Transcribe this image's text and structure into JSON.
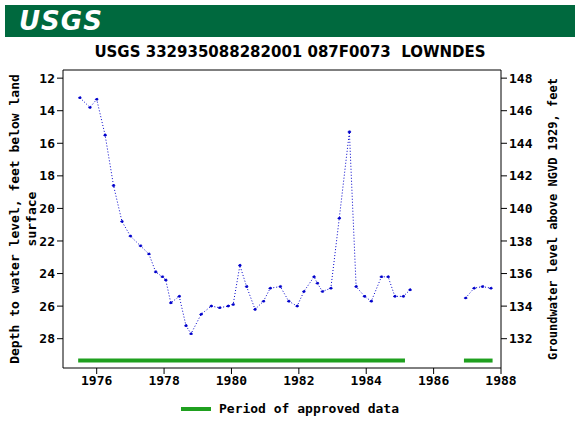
{
  "header": {
    "logo": "USGS"
  },
  "chart_data": {
    "type": "line",
    "title": "USGS 332935088282001 087F0073  LOWNDES",
    "y_label": "Depth to water level, feet below land surface",
    "y2_label": "Groundwater level above NGVD 1929, feet",
    "x": [
      1975.5,
      1975.8,
      1976.0,
      1976.25,
      1976.5,
      1976.75,
      1977.0,
      1977.3,
      1977.55,
      1977.75,
      1977.95,
      1978.05,
      1978.2,
      1978.45,
      1978.65,
      1978.8,
      1979.1,
      1979.4,
      1979.65,
      1979.9,
      1980.05,
      1980.25,
      1980.45,
      1980.7,
      1980.95,
      1981.15,
      1981.45,
      1981.7,
      1981.95,
      1982.15,
      1982.45,
      1982.55,
      1982.7,
      1982.95,
      1983.2,
      1983.5,
      1983.7,
      1983.95,
      1984.15,
      1984.45,
      1984.65,
      1984.85,
      1985.1,
      1985.3,
      1986.0,
      1986.95,
      1987.2,
      1987.45,
      1987.7
    ],
    "values": [
      13.2,
      13.8,
      13.3,
      15.5,
      18.6,
      20.8,
      21.7,
      22.3,
      22.8,
      23.9,
      24.2,
      24.4,
      25.8,
      25.4,
      27.2,
      27.7,
      26.5,
      26.0,
      26.1,
      26.0,
      25.9,
      23.5,
      24.8,
      26.2,
      25.7,
      24.9,
      24.8,
      25.7,
      26.0,
      25.1,
      24.2,
      24.6,
      25.1,
      24.9,
      20.6,
      15.3,
      24.8,
      25.4,
      25.7,
      24.2,
      24.2,
      25.4,
      25.4,
      25.0,
      null,
      25.5,
      24.9,
      24.8,
      24.9
    ],
    "color": "#0000cc",
    "marker": "dot",
    "line_style": "dotted",
    "approved_periods": {
      "name": "Period of approved data",
      "color": "#1fa01f",
      "ranges": [
        [
          1975.45,
          1985.15
        ],
        [
          1986.9,
          1987.75
        ]
      ]
    },
    "legend": "bottom",
    "grid": false,
    "xlim": [
      1975.0,
      1988.0
    ],
    "xticks": [
      1976,
      1978,
      1980,
      1982,
      1984,
      1986,
      1988
    ],
    "ylim": [
      29.8,
      11.5
    ],
    "yticks": [
      12,
      14,
      16,
      18,
      20,
      22,
      24,
      26,
      28
    ],
    "y2lim": [
      130.2,
      148.5
    ],
    "y2ticks": [
      132,
      134,
      136,
      138,
      140,
      142,
      144,
      146,
      148
    ]
  }
}
